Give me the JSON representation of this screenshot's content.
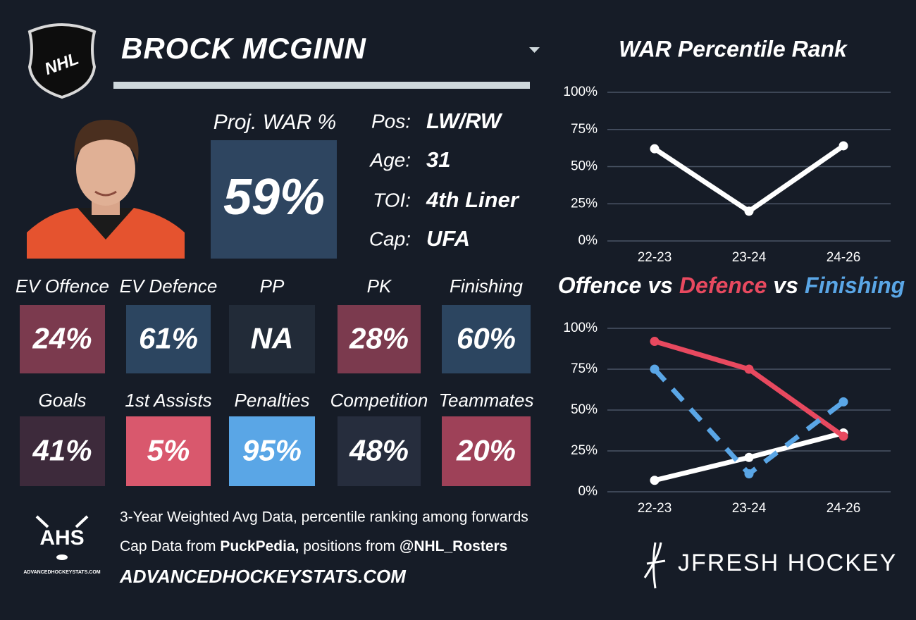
{
  "header": {
    "name": "BROCK MCGINN",
    "logo": "NHL"
  },
  "projection": {
    "label": "Proj. WAR %",
    "value": "59%"
  },
  "info": [
    {
      "label": "Pos:",
      "value": "LW/RW"
    },
    {
      "label": "Age:",
      "value": "31"
    },
    {
      "label": "TOI:",
      "value": "4th Liner"
    },
    {
      "label": "Cap:",
      "value": "UFA"
    }
  ],
  "tiles": [
    {
      "label": "EV Offence",
      "value": "24%",
      "color": "#7b3a4e"
    },
    {
      "label": "EV Defence",
      "value": "61%",
      "color": "#2c4560"
    },
    {
      "label": "PP",
      "value": "NA",
      "color": "#222b38"
    },
    {
      "label": "PK",
      "value": "28%",
      "color": "#7b3a4e"
    },
    {
      "label": "Finishing",
      "value": "60%",
      "color": "#2c4560"
    },
    {
      "label": "Goals",
      "value": "41%",
      "color": "#3d2a3b"
    },
    {
      "label": "1st Assists",
      "value": "5%",
      "color": "#d9586d"
    },
    {
      "label": "Penalties",
      "value": "95%",
      "color": "#5aa6e6"
    },
    {
      "label": "Competition",
      "value": "48%",
      "color": "#262d3d"
    },
    {
      "label": "Teammates",
      "value": "20%",
      "color": "#9e4158"
    }
  ],
  "footer": {
    "line1": "3-Year Weighted Avg Data, percentile ranking among forwards",
    "line2": [
      "Cap Data from ",
      "PuckPedia,",
      " positions from ",
      "@NHL_Rosters"
    ],
    "site": "ADVANCEDHOCKEYSTATS.COM",
    "ahs_logo": "AHS",
    "ahs_site": "ADVANCEDHOCKEYSTATS.COM",
    "brand": "JFRESH HOCKEY"
  },
  "chart_data": [
    {
      "type": "line",
      "title": "WAR Percentile Rank",
      "categories": [
        "22-23",
        "23-24",
        "24-26"
      ],
      "series": [
        {
          "name": "WAR",
          "color": "#ffffff",
          "values": [
            62,
            20,
            64
          ]
        }
      ],
      "ylim": [
        0,
        100
      ],
      "yticks": [
        {
          "value": 0,
          "label": "0%"
        },
        {
          "value": 25,
          "label": "25%"
        },
        {
          "value": 50,
          "label": "50%"
        },
        {
          "value": 75,
          "label": "75%"
        },
        {
          "value": 100,
          "label": "100%"
        }
      ],
      "grid": true
    },
    {
      "type": "line",
      "title_separator": "vs",
      "categories": [
        "22-23",
        "23-24",
        "24-26"
      ],
      "series": [
        {
          "name": "Offence",
          "color": "#ffffff",
          "values": [
            7,
            21,
            36
          ]
        },
        {
          "name": "Defence",
          "color": "#e8495f",
          "values": [
            92,
            75,
            34
          ]
        },
        {
          "name": "Finishing",
          "color": "#5aa6e6",
          "values": [
            75,
            11,
            55
          ],
          "dashed": true
        }
      ],
      "ylim": [
        0,
        100
      ],
      "yticks": [
        {
          "value": 0,
          "label": "0%"
        },
        {
          "value": 25,
          "label": "25%"
        },
        {
          "value": 50,
          "label": "50%"
        },
        {
          "value": 75,
          "label": "75%"
        },
        {
          "value": 100,
          "label": "100%"
        }
      ],
      "grid": true
    }
  ]
}
